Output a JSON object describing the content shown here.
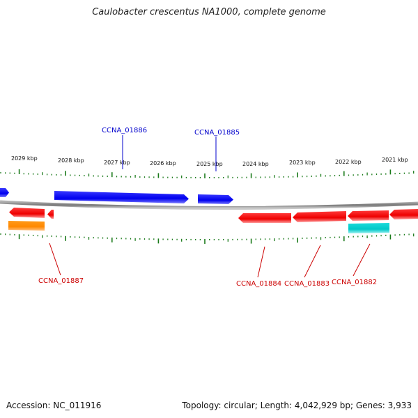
{
  "title": "Caulobacter crescentus NA1000, complete genome",
  "footer": {
    "accession": "Accession: NC_011916",
    "summary": "Topology: circular; Length: 4,042,929 bp; Genes: 3,933"
  },
  "ruler": {
    "labels": [
      "2029 kbp",
      "2028 kbp",
      "2027 kbp",
      "2026 kbp",
      "2025 kbp",
      "2024 kbp",
      "2023 kbp",
      "2022 kbp",
      "2021 kbp"
    ],
    "tick_color": "#1a7a1a"
  },
  "colors": {
    "forward": "#0000ee",
    "reverse": "#ee0000",
    "orange": "#ff8800",
    "cyan": "#00cccc",
    "backbone": "#888888"
  },
  "genes": {
    "forward_labels": [
      "CCNA_01886",
      "CCNA_01885"
    ],
    "reverse_labels": [
      "CCNA_01887",
      "CCNA_01884",
      "CCNA_01883",
      "CCNA_01882"
    ]
  }
}
